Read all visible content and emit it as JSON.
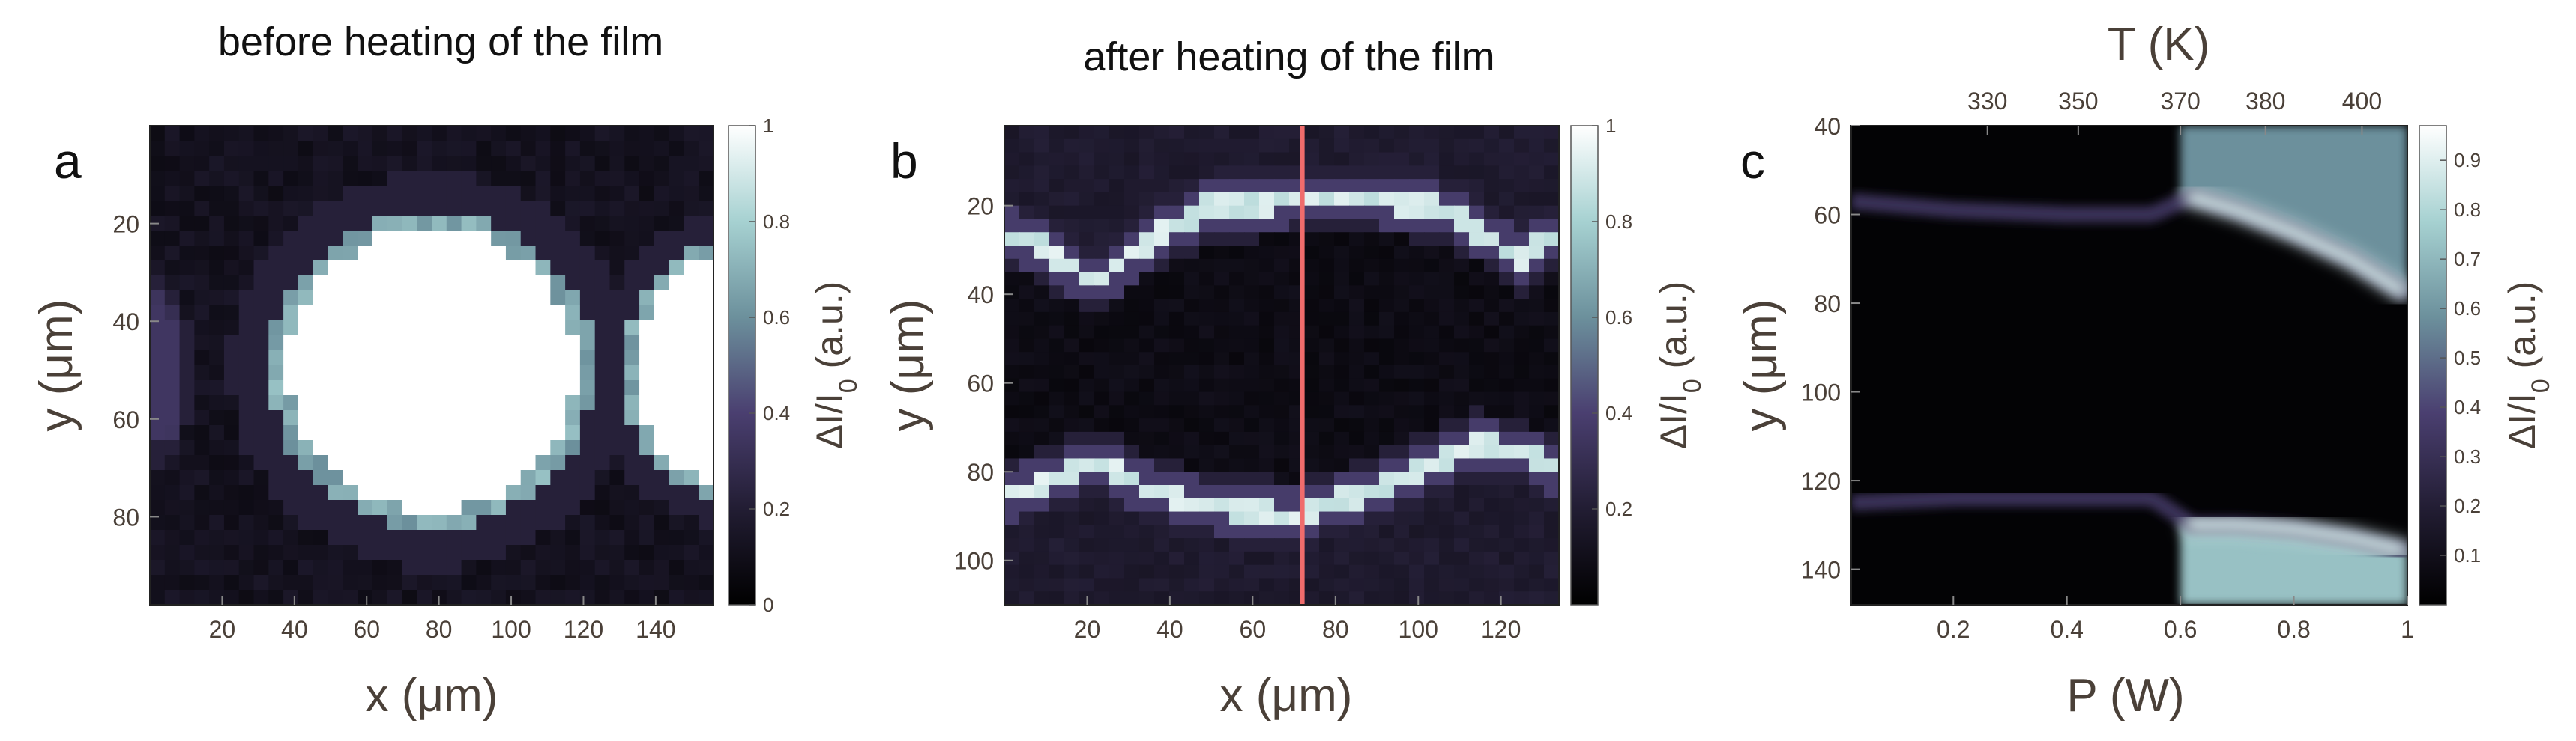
{
  "chart_data": [
    {
      "type": "heatmap",
      "panel_label": "a",
      "title": "before heating of the film",
      "xlabel": "x (μm)",
      "ylabel": "y (μm)",
      "xlim": [
        0,
        156
      ],
      "ylim": [
        0,
        98
      ],
      "y_inverted": true,
      "xticks": [
        20,
        40,
        60,
        80,
        100,
        120,
        140
      ],
      "yticks": [
        20,
        40,
        60,
        80
      ],
      "colorbar": {
        "label": "ΔI/I₀ (a.u.)",
        "range": [
          0,
          1
        ],
        "ticks": [
          "0",
          "0.2",
          "0.4",
          "0.6",
          "0.8",
          "1"
        ]
      },
      "features": [
        {
          "shape": "ellipse",
          "cx": 78,
          "cy": 50,
          "rx": 40,
          "ry": 29,
          "value": 1.0
        },
        {
          "shape": "ellipse",
          "cx": 160,
          "cy": 50,
          "rx": 26,
          "ry": 23,
          "value": 1.0
        },
        {
          "shape": "ellipse",
          "cx": 2,
          "cy": 50,
          "rx": 7,
          "ry": 14,
          "value": 0.35
        }
      ],
      "background_value": 0.08
    },
    {
      "type": "heatmap",
      "panel_label": "b",
      "title": "after heating of the film",
      "xlabel": "x (μm)",
      "ylabel": "y (μm)",
      "xlim": [
        0,
        134
      ],
      "ylim": [
        2,
        110
      ],
      "y_inverted": true,
      "xticks": [
        20,
        40,
        60,
        80,
        100,
        120
      ],
      "yticks": [
        20,
        40,
        60,
        80,
        100
      ],
      "colorbar": {
        "label": "ΔI/I₀ (a.u.)",
        "range": [
          0,
          1
        ],
        "ticks": [
          "0.2",
          "0.4",
          "0.6",
          "0.8",
          "1"
        ]
      },
      "marker_line_x": 72,
      "ridges": [
        {
          "x": [
            0,
            10,
            22,
            35,
            50,
            70,
            90,
            105,
            115,
            125,
            134
          ],
          "y": [
            26,
            30,
            38,
            28,
            20,
            19,
            19,
            20,
            26,
            32,
            26
          ],
          "value": 0.85
        },
        {
          "x": [
            0,
            10,
            22,
            35,
            50,
            70,
            90,
            105,
            115,
            125,
            134
          ],
          "y": [
            86,
            82,
            78,
            84,
            88,
            90,
            84,
            78,
            74,
            76,
            80
          ],
          "value": 0.85
        }
      ],
      "background_value": 0.05
    },
    {
      "type": "heatmap",
      "panel_label": "c",
      "xlabel": "P (W)",
      "ylabel": "y (μm)",
      "top_xlabel": "T (K)",
      "xlim": [
        0.02,
        1.0
      ],
      "ylim": [
        40,
        148
      ],
      "y_inverted": true,
      "xticks": [
        0.2,
        0.4,
        0.6,
        0.8,
        1
      ],
      "xtick_labels": [
        "0.2",
        "0.4",
        "0.6",
        "0.8",
        "1"
      ],
      "top_ticks": [
        {
          "P": 0.26,
          "T": "330"
        },
        {
          "P": 0.42,
          "T": "350"
        },
        {
          "P": 0.6,
          "T": "370"
        },
        {
          "P": 0.75,
          "T": "380"
        },
        {
          "P": 0.92,
          "T": "400"
        }
      ],
      "yticks": [
        40,
        60,
        80,
        100,
        120,
        140
      ],
      "colorbar": {
        "label": "ΔI/I₀ (a.u.)",
        "range": [
          0.0,
          0.97
        ],
        "ticks": [
          "0.1",
          "0.2",
          "0.3",
          "0.4",
          "0.5",
          "0.6",
          "0.7",
          "0.8",
          "0.9"
        ]
      },
      "upper_edge": {
        "P": [
          0.02,
          0.2,
          0.4,
          0.55,
          0.62,
          0.7,
          0.8,
          0.9,
          1.0
        ],
        "y": [
          57,
          59,
          60,
          60,
          56,
          59,
          64,
          70,
          78
        ]
      },
      "lower_edge": {
        "P": [
          0.02,
          0.2,
          0.4,
          0.55,
          0.62,
          0.7,
          0.8,
          0.9,
          1.0
        ],
        "y": [
          125,
          124,
          124,
          124,
          130,
          130,
          131,
          133,
          136
        ]
      },
      "transition_P": 0.6,
      "bright_values": {
        "top_region": 0.6,
        "edge": 0.9,
        "bottom_region": 0.75
      }
    }
  ]
}
